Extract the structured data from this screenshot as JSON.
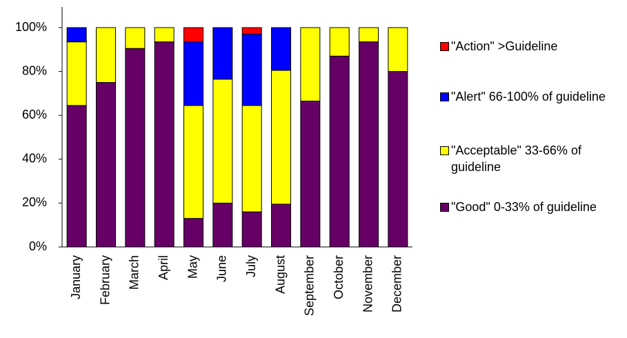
{
  "chart_data": {
    "type": "stacked_bar",
    "categories": [
      "January",
      "February",
      "March",
      "April",
      "May",
      "June",
      "July",
      "August",
      "September",
      "October",
      "November",
      "December"
    ],
    "series": [
      {
        "name": "\"Good\" 0-33% of guideline",
        "color": "#660066",
        "values": [
          64.5,
          75,
          90.5,
          93.5,
          13,
          20,
          16,
          19.5,
          66.5,
          87,
          93.5,
          80
        ]
      },
      {
        "name": "\"Acceptable\" 33-66% of guideline",
        "color": "#ffff00",
        "values": [
          29,
          25,
          9.5,
          6.5,
          51.5,
          56.5,
          48.5,
          61,
          33.5,
          13,
          6.5,
          20
        ]
      },
      {
        "name": "\"Alert\" 66-100% of guideline",
        "color": "#0000ff",
        "values": [
          6.5,
          0,
          0,
          0,
          29,
          23.5,
          32.5,
          19.5,
          0,
          0,
          0,
          0
        ]
      },
      {
        "name": "\"Action\" >Guideline",
        "color": "#ff0000",
        "values": [
          0,
          0,
          0,
          0,
          6.5,
          0,
          3,
          0,
          0,
          0,
          0,
          0
        ]
      }
    ],
    "ylim": [
      0,
      100
    ],
    "yticks": [
      {
        "value": 0,
        "label": "0%"
      },
      {
        "value": 20,
        "label": "20%"
      },
      {
        "value": 40,
        "label": "40%"
      },
      {
        "value": 60,
        "label": "60%"
      },
      {
        "value": 80,
        "label": "80%"
      },
      {
        "value": 100,
        "label": "100%"
      }
    ],
    "legend": "right"
  }
}
